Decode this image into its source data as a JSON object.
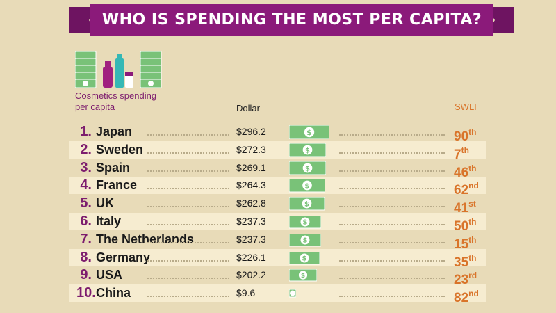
{
  "title": "WHO IS SPENDING THE MOST PER CAPITA?",
  "category_label_line1": "Cosmetics spending",
  "category_label_line2": "per capita",
  "col_dollar": "Dollar",
  "col_swli": "SWLI",
  "colors": {
    "banner": "#8b1a7a",
    "rank": "#7d1d6e",
    "swli": "#d9742a",
    "bill": "#79c278",
    "background": "#e8dbb8"
  },
  "icons": [
    "dollar-bill-stack-icon",
    "cosmetics-bottles-icon",
    "dollar-bill-stack-icon"
  ],
  "chart_data": {
    "type": "bar",
    "title": "WHO IS SPENDING THE MOST PER CAPITA?",
    "xlabel": "",
    "ylabel": "Dollar",
    "categories": [
      "Japan",
      "Sweden",
      "Spain",
      "France",
      "UK",
      "Italy",
      "The Netherlands",
      "Germany",
      "USA",
      "China"
    ],
    "ranks": [
      "1.",
      "2.",
      "3.",
      "4.",
      "5.",
      "6.",
      "7.",
      "8.",
      "9.",
      "10."
    ],
    "values": [
      296.2,
      272.3,
      269.1,
      264.3,
      262.8,
      237.3,
      237.3,
      226.1,
      202.2,
      9.6
    ],
    "value_labels": [
      "$296.2",
      "$272.3",
      "$269.1",
      "$264.3",
      "$262.8",
      "$237.3",
      "$237.3",
      "$226.1",
      "$202.2",
      "$9.6"
    ],
    "swli_rank": [
      90,
      7,
      46,
      62,
      41,
      50,
      15,
      35,
      23,
      82
    ],
    "swli_suffix": [
      "th",
      "th",
      "th",
      "nd",
      "st",
      "th",
      "th",
      "th",
      "rd",
      "nd"
    ]
  }
}
